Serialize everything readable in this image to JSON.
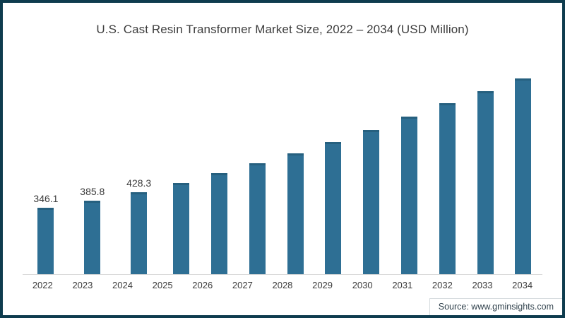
{
  "page": {
    "background": "#ffffff",
    "border_color": "#0e3c4e"
  },
  "header": {
    "title": "U.S. Cast Resin Transformer Market Size, 2022 – 2034 (USD Million)"
  },
  "footer": {
    "source_label": "Source: www.gminsights.com"
  },
  "chart_data": {
    "type": "bar",
    "title": "U.S. Cast Resin Transformer Market Size, 2022 – 2034 (USD Million)",
    "categories": [
      "2022",
      "2023",
      "2024",
      "2025",
      "2026",
      "2027",
      "2028",
      "2029",
      "2030",
      "2031",
      "2032",
      "2033",
      "2034"
    ],
    "values": [
      346.1,
      385.8,
      428.3,
      478,
      527,
      578,
      630,
      690,
      753,
      823,
      894,
      957,
      1023
    ],
    "data_labels_shown": [
      "346.1",
      "385.8",
      "428.3",
      "",
      "",
      "",
      "",
      "",
      "",
      "",
      "",
      "",
      ""
    ],
    "xlabel": "",
    "ylabel": "",
    "ylim": [
      0,
      1060
    ],
    "grid": "off",
    "legend": "none",
    "bar_color": "#2e6f94",
    "bar_top_edge_color": "#26607f",
    "axis_line_color": "#d9d9d9"
  }
}
